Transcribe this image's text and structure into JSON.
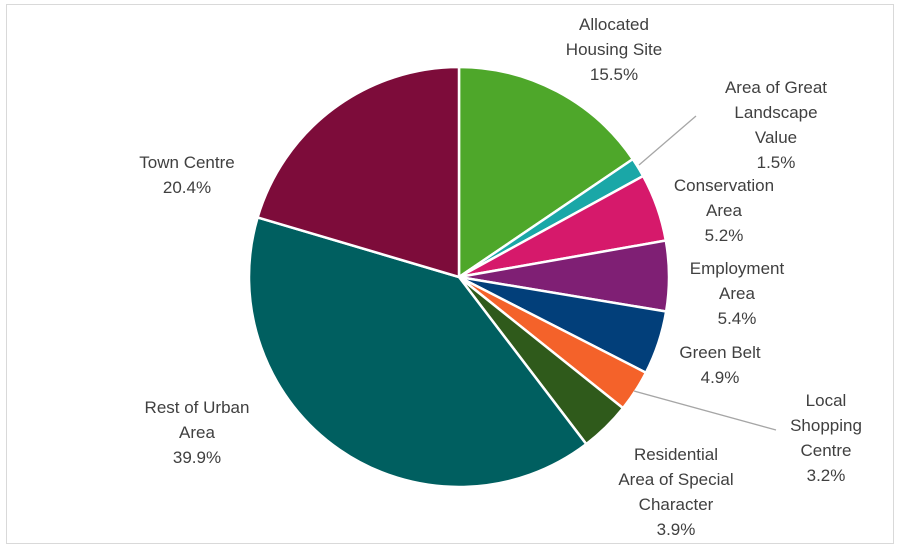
{
  "chart_data": {
    "type": "pie",
    "title": "",
    "legend": "none",
    "slices": [
      {
        "name": "Allocated Housing Site",
        "value": 15.5,
        "label_lines": [
          "Allocated",
          "Housing Site",
          "15.5%"
        ],
        "color": "#4ea72a"
      },
      {
        "name": "Area of Great Landscape Value",
        "value": 1.5,
        "label_lines": [
          "Area of Great",
          "Landscape",
          "Value",
          "1.5%"
        ],
        "color": "#1aa7a7"
      },
      {
        "name": "Conservation Area",
        "value": 5.2,
        "label_lines": [
          "Conservation",
          "Area",
          "5.2%"
        ],
        "color": "#d6196b"
      },
      {
        "name": "Employment Area",
        "value": 5.4,
        "label_lines": [
          "Employment",
          "Area",
          "5.4%"
        ],
        "color": "#7f1f74"
      },
      {
        "name": "Green Belt",
        "value": 4.9,
        "label_lines": [
          "Green Belt",
          "4.9%"
        ],
        "color": "#023f7a"
      },
      {
        "name": "Local Shopping Centre",
        "value": 3.2,
        "label_lines": [
          "Local",
          "Shopping",
          "Centre",
          "3.2%"
        ],
        "color": "#f4622a"
      },
      {
        "name": "Residential Area of Special Character",
        "value": 3.9,
        "label_lines": [
          "Residential",
          "Area of Special",
          "Character",
          "3.9%"
        ],
        "color": "#2f5a1b"
      },
      {
        "name": "Rest of Urban Area",
        "value": 39.9,
        "label_lines": [
          "Rest of Urban",
          "Area",
          "39.9%"
        ],
        "color": "#005f60"
      },
      {
        "name": "Town Centre",
        "value": 20.4,
        "label_lines": [
          "Town Centre",
          "20.4%"
        ],
        "color": "#7d0c3a"
      }
    ]
  }
}
